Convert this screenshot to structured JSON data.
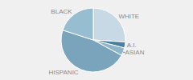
{
  "chart_data": {
    "type": "pie",
    "categories": [
      "WHITE",
      "A.I.",
      "ASIAN",
      "HISPANIC",
      "BLACK"
    ],
    "values": [
      26,
      3,
      4,
      47,
      20
    ],
    "colors": [
      "#c8d9e6",
      "#4a7fa0",
      "#8fb5cb",
      "#7aa3bc",
      "#96bdd0"
    ]
  }
}
